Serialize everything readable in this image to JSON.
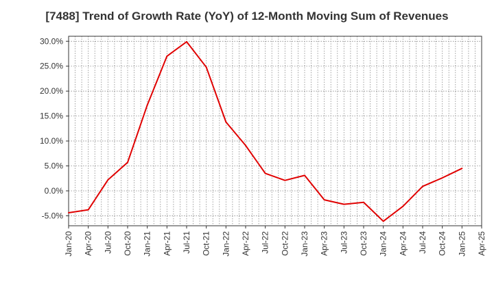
{
  "chart_data": {
    "type": "line",
    "title": "[7488]  Trend of Growth Rate (YoY) of 12-Month Moving Sum of Revenues",
    "xlabel": "",
    "ylabel": "",
    "x_ticks": [
      "Jan-20",
      "Apr-20",
      "Jul-20",
      "Oct-20",
      "Jan-21",
      "Apr-21",
      "Jul-21",
      "Oct-21",
      "Jan-22",
      "Apr-22",
      "Jul-22",
      "Oct-22",
      "Jan-23",
      "Apr-23",
      "Jul-23",
      "Oct-23",
      "Jan-24",
      "Apr-24",
      "Jul-24",
      "Oct-24",
      "Jan-25",
      "Apr-25"
    ],
    "y_ticks": [
      "30.0%",
      "25.0%",
      "20.0%",
      "15.0%",
      "10.0%",
      "5.0%",
      "0.0%",
      "-5.0%"
    ],
    "y_tick_values": [
      30,
      25,
      20,
      15,
      10,
      5,
      0,
      -5
    ],
    "ylim": [
      -7,
      31
    ],
    "grid": true,
    "line_color": "#e00000",
    "series": [
      {
        "x": [
          "Jan-20",
          "Apr-20",
          "Jul-20",
          "Oct-20",
          "Jan-21",
          "Apr-21",
          "Jul-21",
          "Oct-21",
          "Jan-22",
          "Apr-22",
          "Jul-22",
          "Oct-22",
          "Jan-23",
          "Apr-23",
          "Jul-23",
          "Oct-23",
          "Jan-24",
          "Apr-24",
          "Jul-24",
          "Oct-24",
          "Jan-25"
        ],
        "values": [
          -4.4,
          -3.8,
          2.2,
          5.7,
          17.2,
          27.0,
          29.9,
          24.8,
          13.8,
          9.1,
          3.5,
          2.1,
          3.1,
          -1.8,
          -2.7,
          -2.3,
          -6.1,
          -3.1,
          0.9,
          2.6,
          4.5
        ]
      }
    ]
  }
}
